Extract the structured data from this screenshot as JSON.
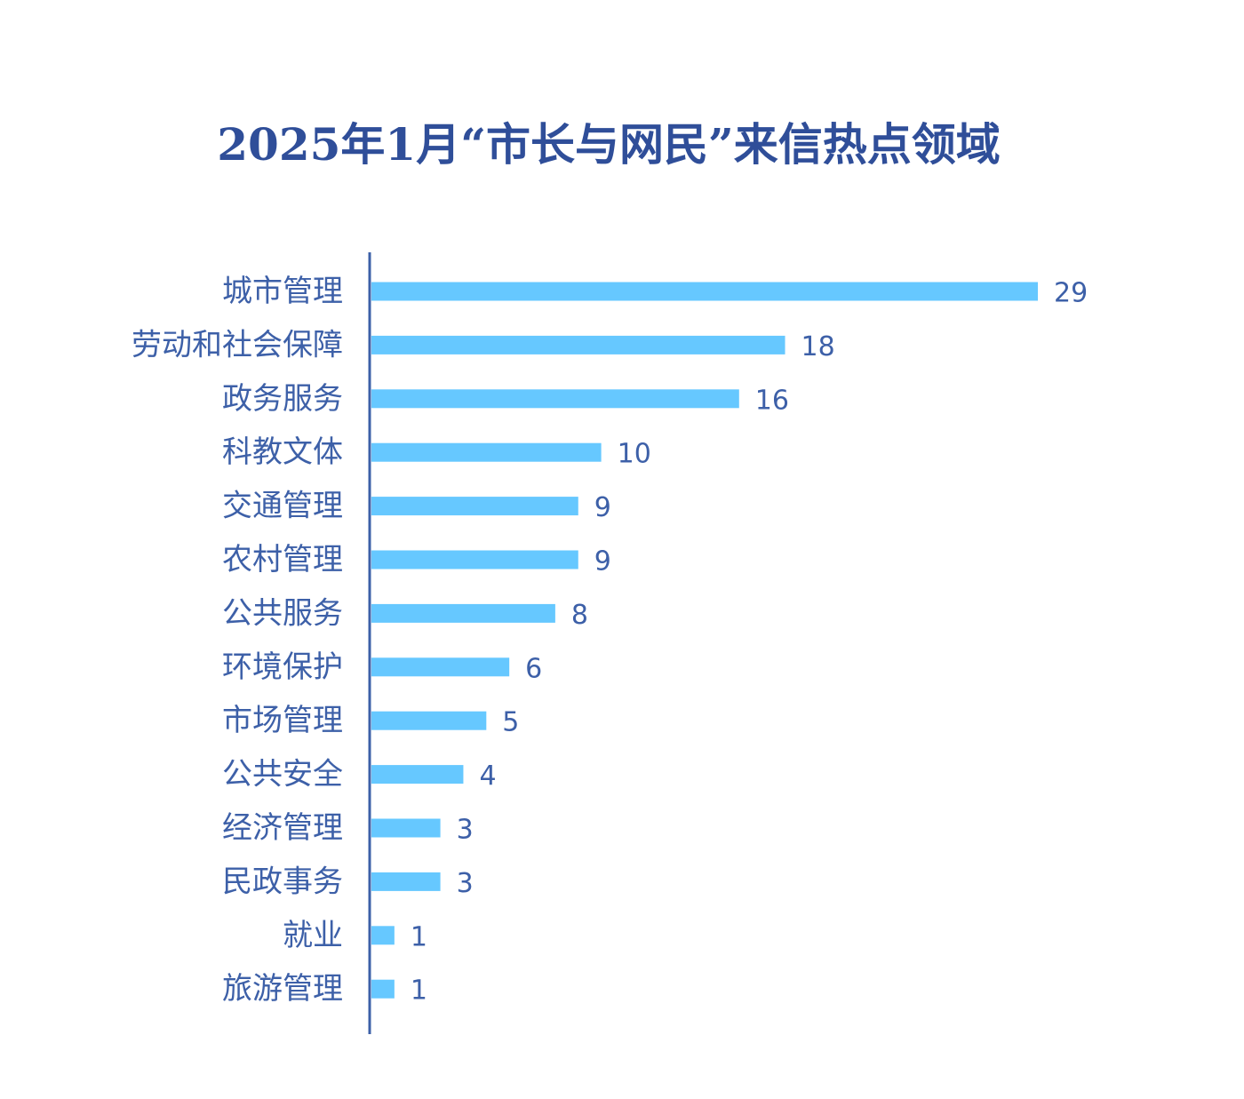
{
  "chart_data": {
    "type": "bar",
    "orientation": "horizontal",
    "title": "2025年1月“市长与网民”来信热点领域",
    "categories": [
      "城市管理",
      "劳动和社会保障",
      "政务服务",
      "科教文体",
      "交通管理",
      "农村管理",
      "公共服务",
      "环境保护",
      "市场管理",
      "公共安全",
      "经济管理",
      "民政事务",
      "就业",
      "旅游管理"
    ],
    "values": [
      29,
      18,
      16,
      10,
      9,
      9,
      8,
      6,
      5,
      4,
      3,
      3,
      1,
      1
    ],
    "xlim": [
      0,
      29
    ],
    "grid": false,
    "legend": "none",
    "colors": {
      "bar": "#66c8ff",
      "axis": "#3d60a8",
      "text": "#3d60a8",
      "title": "#2f4e99"
    }
  }
}
